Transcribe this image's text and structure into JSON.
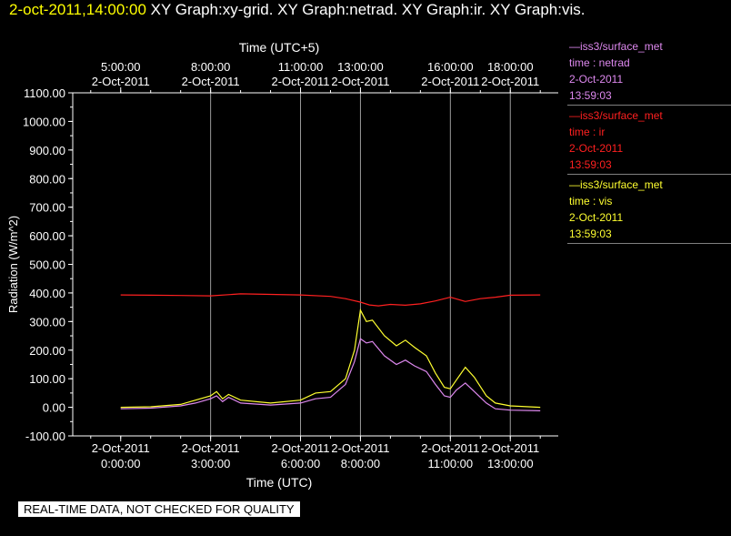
{
  "header": {
    "timestamp": "2-oct-2011,14:00:00",
    "graphs": "XY Graph:xy-grid.  XY Graph:netrad.  XY Graph:ir.  XY Graph:vis."
  },
  "legend": [
    {
      "line": "—iss3/surface_met",
      "var": "time : netrad",
      "date": "2-Oct-2011",
      "time": "13:59:03",
      "color": "#dd88ee"
    },
    {
      "line": "—iss3/surface_met",
      "var": "time : ir",
      "date": "2-Oct-2011",
      "time": "13:59:03",
      "color": "#ff2020"
    },
    {
      "line": "—iss3/surface_met",
      "var": "time : vis",
      "date": "2-Oct-2011",
      "time": "13:59:03",
      "color": "#ffff30"
    }
  ],
  "footer": "REAL-TIME DATA, NOT CHECKED FOR QUALITY",
  "chart_data": {
    "type": "line",
    "xlabel": "Time (UTC)",
    "x2label": "Time (UTC+5)",
    "ylabel": "Radiation (W/m^2)",
    "xlim": [
      -1.6,
      14.6
    ],
    "ylim": [
      -100,
      1100
    ],
    "yticks": [
      -100,
      0,
      100,
      200,
      300,
      400,
      500,
      600,
      700,
      800,
      900,
      1000,
      1100
    ],
    "ytick_labels": [
      "-100.00",
      "0.00",
      "100.00",
      "200.00",
      "300.00",
      "400.00",
      "500.00",
      "600.00",
      "700.00",
      "800.00",
      "900.00",
      "1000.00",
      "1100.00"
    ],
    "xticks_bottom": [
      {
        "x": 0,
        "date": "2-Oct-2011",
        "time": "0:00:00"
      },
      {
        "x": 3,
        "date": "2-Oct-2011",
        "time": "3:00:00"
      },
      {
        "x": 6,
        "date": "2-Oct-2011",
        "time": "6:00:00"
      },
      {
        "x": 8,
        "date": "2-Oct-2011",
        "time": "8:00:00"
      },
      {
        "x": 11,
        "date": "2-Oct-2011",
        "time": "11:00:00"
      },
      {
        "x": 13,
        "date": "2-Oct-2011",
        "time": "13:00:00"
      }
    ],
    "xticks_top": [
      {
        "x": 0,
        "time": "5:00:00",
        "date": "2-Oct-2011"
      },
      {
        "x": 3,
        "time": "8:00:00",
        "date": "2-Oct-2011"
      },
      {
        "x": 6,
        "time": "11:00:00",
        "date": "2-Oct-2011"
      },
      {
        "x": 8,
        "time": "13:00:00",
        "date": "2-Oct-2011"
      },
      {
        "x": 11,
        "time": "16:00:00",
        "date": "2-Oct-2011"
      },
      {
        "x": 13,
        "time": "18:00:00",
        "date": "2-Oct-2011"
      }
    ],
    "vertical_grid_at": [
      3,
      6,
      8,
      11,
      13
    ],
    "series": [
      {
        "var": "ir",
        "color": "#ff2020",
        "x": [
          0,
          1,
          2,
          3,
          4,
          5,
          6,
          7,
          7.5,
          8,
          8.3,
          8.6,
          9,
          9.5,
          10,
          10.5,
          11,
          11.5,
          12,
          12.5,
          13,
          14
        ],
        "y": [
          393,
          392,
          391,
          390,
          397,
          395,
          393,
          388,
          380,
          368,
          358,
          355,
          360,
          357,
          362,
          372,
          385,
          370,
          380,
          385,
          392,
          393
        ]
      },
      {
        "var": "vis",
        "color": "#ffff30",
        "x": [
          0,
          1,
          2,
          2.5,
          3,
          3.2,
          3.4,
          3.6,
          4,
          5,
          6,
          6.5,
          7,
          7.5,
          7.8,
          8,
          8.2,
          8.4,
          8.8,
          9.2,
          9.5,
          9.8,
          10.2,
          10.5,
          10.8,
          11,
          11.2,
          11.5,
          11.8,
          12.2,
          12.5,
          13,
          14
        ],
        "y": [
          0,
          2,
          10,
          25,
          40,
          55,
          30,
          45,
          25,
          15,
          25,
          50,
          55,
          100,
          200,
          340,
          300,
          305,
          250,
          215,
          235,
          210,
          180,
          120,
          70,
          65,
          95,
          140,
          105,
          40,
          15,
          5,
          0
        ]
      },
      {
        "var": "netrad",
        "color": "#dd88ee",
        "x": [
          0,
          1,
          2,
          2.5,
          3,
          3.2,
          3.4,
          3.6,
          4,
          5,
          6,
          6.5,
          7,
          7.5,
          7.8,
          8,
          8.2,
          8.4,
          8.8,
          9.2,
          9.5,
          9.8,
          10.2,
          10.5,
          10.8,
          11,
          11.2,
          11.5,
          11.8,
          12.2,
          12.5,
          13,
          14
        ],
        "y": [
          -5,
          -3,
          5,
          15,
          30,
          40,
          20,
          35,
          15,
          8,
          15,
          30,
          35,
          80,
          160,
          240,
          225,
          230,
          180,
          150,
          165,
          145,
          125,
          80,
          40,
          35,
          60,
          85,
          55,
          15,
          -5,
          -10,
          -12
        ]
      }
    ]
  }
}
